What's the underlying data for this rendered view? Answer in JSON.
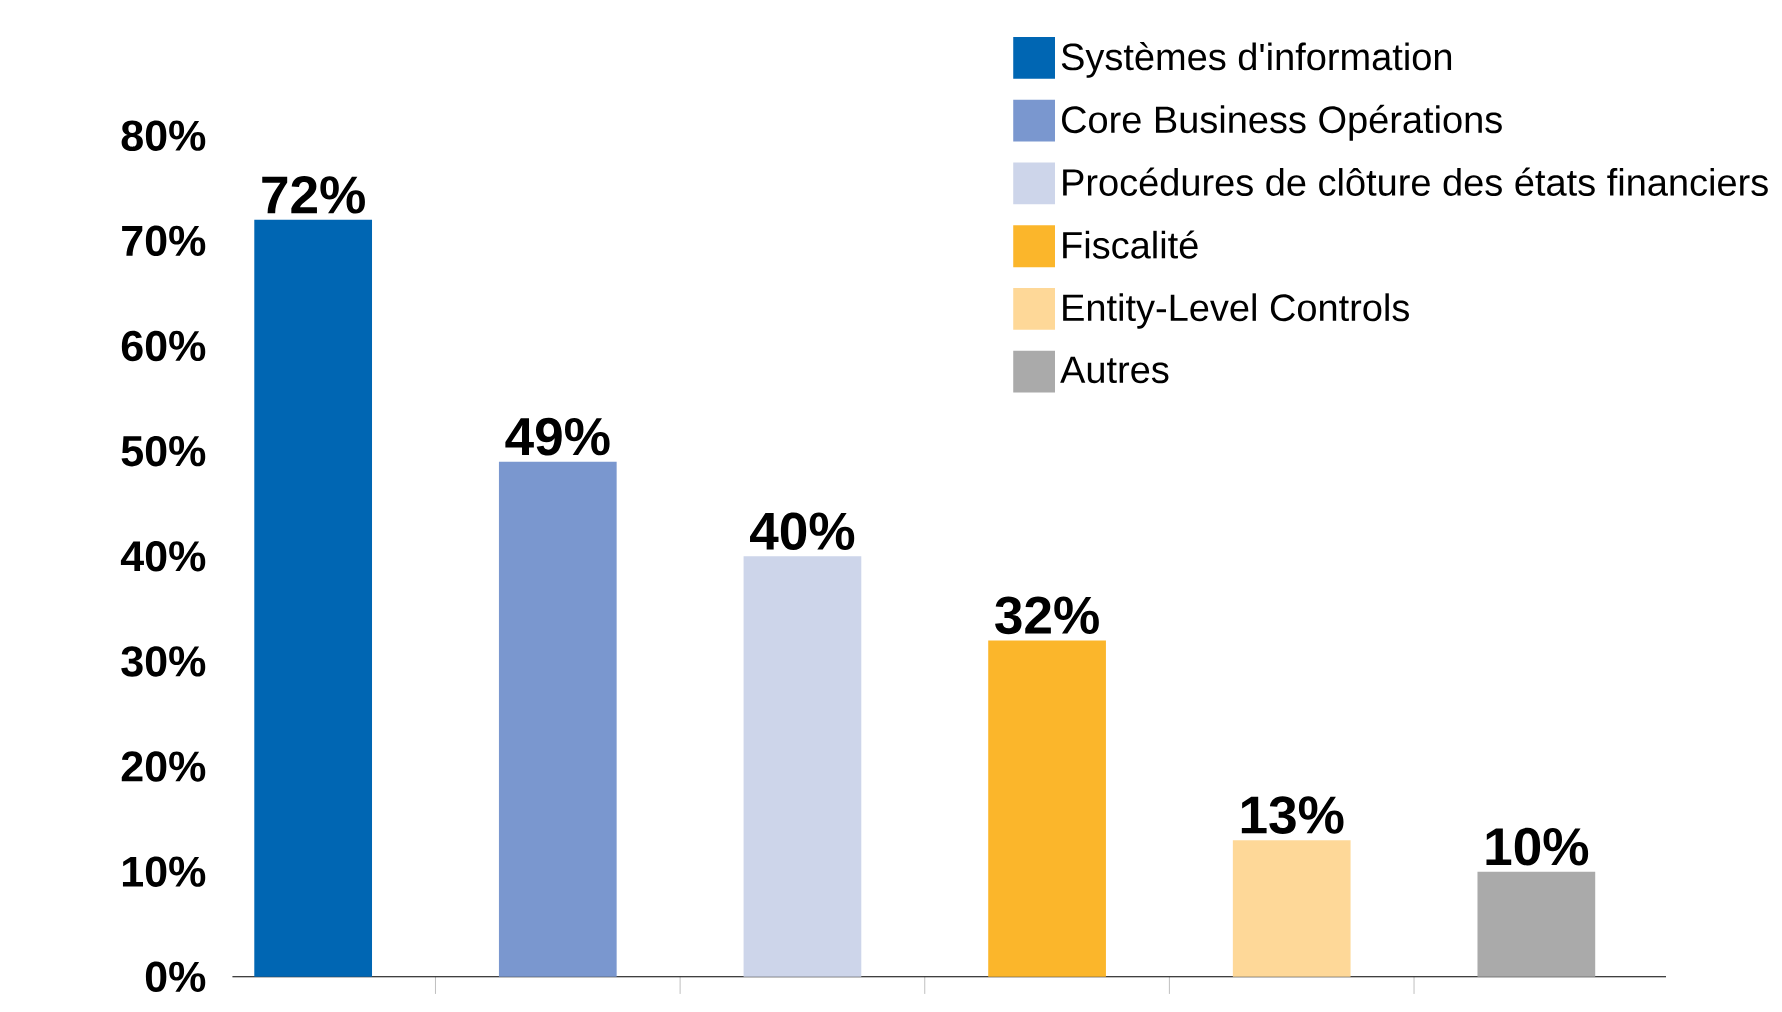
{
  "chart_data": {
    "type": "bar",
    "categories": [
      null,
      null,
      null,
      null,
      null,
      null
    ],
    "series": [
      {
        "name": "Systèmes d'information",
        "color": "#0066b3",
        "values": [
          72,
          null,
          null,
          null,
          null,
          null
        ],
        "value_labels": [
          "72%",
          null,
          null,
          null,
          null,
          null
        ]
      },
      {
        "name": "Core Business Opérations",
        "color": "#7a97cf",
        "values": [
          null,
          49,
          null,
          null,
          null,
          null
        ],
        "value_labels": [
          null,
          "49%",
          null,
          null,
          null,
          null
        ]
      },
      {
        "name": "Procédures de clôture des états financiers",
        "color": "#cdd5ea",
        "values": [
          null,
          null,
          40,
          null,
          null,
          null
        ],
        "value_labels": [
          null,
          null,
          "40%",
          null,
          null,
          null
        ]
      },
      {
        "name": "Fiscalité",
        "color": "#fbb62b",
        "values": [
          null,
          null,
          null,
          32,
          null,
          null
        ],
        "value_labels": [
          null,
          null,
          null,
          "32%",
          null,
          null
        ]
      },
      {
        "name": "Entity-Level Controls",
        "color": "#fed898",
        "values": [
          null,
          null,
          null,
          null,
          13,
          null
        ],
        "value_labels": [
          null,
          null,
          null,
          null,
          "13%",
          null
        ]
      },
      {
        "name": "Autres",
        "color": "#aaaaaa",
        "values": [
          null,
          null,
          null,
          null,
          null,
          10
        ],
        "value_labels": [
          null,
          null,
          null,
          null,
          null,
          "10%"
        ]
      }
    ],
    "ylim": [
      0,
      80
    ],
    "yticks": [
      {
        "value": 0,
        "label": "0%"
      },
      {
        "value": 10,
        "label": "10%"
      },
      {
        "value": 20,
        "label": "20%"
      },
      {
        "value": 30,
        "label": "30%"
      },
      {
        "value": 40,
        "label": "40%"
      },
      {
        "value": 50,
        "label": "50%"
      },
      {
        "value": 60,
        "label": "60%"
      },
      {
        "value": 70,
        "label": "70%"
      },
      {
        "value": 80,
        "label": "80%"
      }
    ],
    "tick_labels": "y",
    "legend": "top right"
  }
}
